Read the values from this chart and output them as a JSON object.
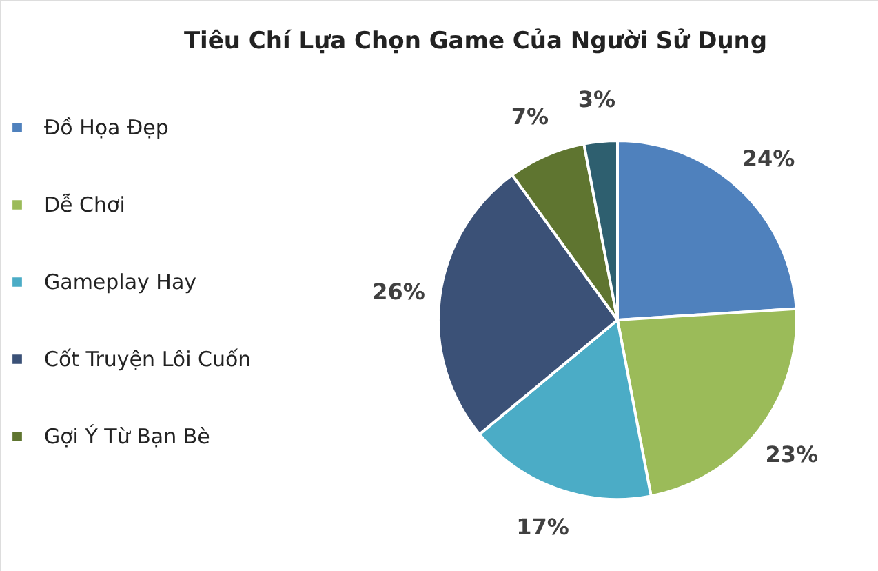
{
  "chart_data": {
    "type": "pie",
    "title": "Tiêu Chí Lựa Chọn Game Của Người Sử Dụng",
    "categories": [
      "Đồ Họa Đẹp",
      "Dễ Chơi",
      "Gameplay Hay",
      "Cốt Truyện Lôi Cuốn",
      "Gợi Ý Từ Bạn Bè",
      null
    ],
    "values": [
      24,
      23,
      17,
      26,
      7,
      3
    ],
    "value_labels": [
      "24%",
      "23%",
      "17%",
      "26%",
      "7%",
      "3%"
    ],
    "colors": [
      "#4f81bd",
      "#9bbb59",
      "#4bacc6",
      "#3b5177",
      "#5f7530",
      "#2e5f6f"
    ],
    "legend": "left"
  }
}
